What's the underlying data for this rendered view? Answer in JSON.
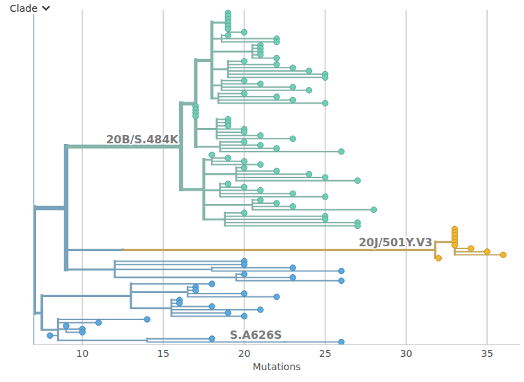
{
  "header": {
    "text": "Clade"
  },
  "chart_data": {
    "type": "tree",
    "x_label": "Mutations",
    "xlim": [
      7,
      37
    ],
    "xticks": [
      10,
      15,
      20,
      25,
      30,
      35
    ],
    "grid": true,
    "tick_labels": "x",
    "tree": {
      "x": 7,
      "color": "#5aa9df",
      "children": [
        {
          "x": 9,
          "children": [
            {
              "x": 16.1,
              "label": "20B/S.484K",
              "color": "#6fcfb6",
              "children": [
                {
                  "x": 17,
                  "children": [
                    {
                      "x": 18,
                      "children": [
                        {
                          "x": 19,
                          "children": [
                            {
                              "x": 19
                            },
                            {
                              "x": 19
                            },
                            {
                              "x": 19
                            },
                            {
                              "x": 19
                            },
                            {
                              "x": 19
                            },
                            {
                              "x": 19
                            },
                            {
                              "x": 20
                            }
                          ]
                        },
                        {
                          "x": 18.6,
                          "children": [
                            {
                              "x": 19
                            },
                            {
                              "x": 22
                            },
                            {
                              "x": 22
                            }
                          ]
                        },
                        {
                          "x": 20.5,
                          "children": [
                            {
                              "x": 21
                            },
                            {
                              "x": 21
                            },
                            {
                              "x": 21
                            },
                            {
                              "x": 21
                            },
                            {
                              "x": 22
                            }
                          ]
                        },
                        {
                          "x": 19,
                          "children": [
                            {
                              "x": 20
                            },
                            {
                              "x": 22
                            },
                            {
                              "x": 23
                            },
                            {
                              "x": 24
                            },
                            {
                              "x": 25
                            },
                            {
                              "x": 25
                            }
                          ]
                        },
                        {
                          "x": 18.6,
                          "children": [
                            {
                              "x": 20
                            },
                            {
                              "x": 21
                            },
                            {
                              "x": 23
                            },
                            {
                              "x": 24
                            }
                          ]
                        },
                        {
                          "x": 18.4,
                          "children": [
                            {
                              "x": 20
                            },
                            {
                              "x": 22
                            },
                            {
                              "x": 23
                            },
                            {
                              "x": 25
                            }
                          ]
                        }
                      ]
                    },
                    {
                      "x": 17
                    },
                    {
                      "x": 17
                    },
                    {
                      "x": 17
                    },
                    {
                      "x": 17
                    },
                    {
                      "x": 18.3,
                      "children": [
                        {
                          "x": 19
                        },
                        {
                          "x": 19
                        },
                        {
                          "x": 19
                        },
                        {
                          "x": 20
                        },
                        {
                          "x": 20
                        },
                        {
                          "x": 21
                        },
                        {
                          "x": 23
                        }
                      ]
                    },
                    {
                      "x": 18.5,
                      "children": [
                        {
                          "x": 20
                        },
                        {
                          "x": 21
                        },
                        {
                          "x": 22
                        },
                        {
                          "x": 26
                        }
                      ]
                    }
                  ]
                },
                {
                  "x": 17.5,
                  "children": [
                    {
                      "x": 18,
                      "children": [
                        {
                          "x": 18
                        },
                        {
                          "x": 19
                        },
                        {
                          "x": 20
                        },
                        {
                          "x": 21
                        }
                      ]
                    },
                    {
                      "x": 19.5,
                      "children": [
                        {
                          "x": 20
                        },
                        {
                          "x": 22
                        },
                        {
                          "x": 24
                        },
                        {
                          "x": 25
                        },
                        {
                          "x": 27
                        }
                      ]
                    },
                    {
                      "x": 18.5,
                      "children": [
                        {
                          "x": 19
                        },
                        {
                          "x": 20
                        },
                        {
                          "x": 21
                        },
                        {
                          "x": 23
                        },
                        {
                          "x": 25
                        }
                      ]
                    },
                    {
                      "x": 20.5,
                      "children": [
                        {
                          "x": 21
                        },
                        {
                          "x": 22
                        },
                        {
                          "x": 23
                        },
                        {
                          "x": 28
                        }
                      ]
                    },
                    {
                      "x": 18.8,
                      "children": [
                        {
                          "x": 20
                        },
                        {
                          "x": 25
                        },
                        {
                          "x": 25
                        },
                        {
                          "x": 27
                        },
                        {
                          "x": 27
                        }
                      ]
                    }
                  ]
                }
              ]
            },
            {
              "x": 12.5,
              "children": [
                {
                  "x": 31.8,
                  "label": "20J/501Y.V3",
                  "color": "#f2b630",
                  "children": [
                    {
                      "x": 33,
                      "children": [
                        {
                          "x": 33
                        },
                        {
                          "x": 33
                        },
                        {
                          "x": 33
                        },
                        {
                          "x": 33
                        },
                        {
                          "x": 33
                        },
                        {
                          "x": 33
                        },
                        {
                          "x": 34
                        },
                        {
                          "x": 35
                        },
                        {
                          "x": 36
                        }
                      ]
                    },
                    {
                      "x": 32
                    }
                  ]
                }
              ]
            },
            {
              "x": 12,
              "children": [
                {
                  "x": 20
                },
                {
                  "x": 20
                },
                {
                  "x": 18,
                  "children": [
                    {
                      "x": 23
                    },
                    {
                      "x": 26
                    }
                  ]
                },
                {
                  "x": 19.5,
                  "children": [
                    {
                      "x": 20
                    },
                    {
                      "x": 23
                    },
                    {
                      "x": 26
                    }
                  ]
                }
              ]
            }
          ]
        },
        {
          "x": 7.5,
          "children": [
            {
              "x": 13,
              "children": [
                {
                  "x": 18
                },
                {
                  "x": 16.5,
                  "children": [
                    {
                      "x": 17
                    },
                    {
                      "x": 17
                    },
                    {
                      "x": 20
                    },
                    {
                      "x": 22
                    }
                  ]
                },
                {
                  "x": 15.5,
                  "children": [
                    {
                      "x": 16
                    },
                    {
                      "x": 16
                    },
                    {
                      "x": 18
                    },
                    {
                      "x": 21
                    },
                    {
                      "x": 19
                    },
                    {
                      "x": 20
                    }
                  ]
                }
              ]
            },
            {
              "x": 8.5,
              "children": [
                {
                  "x": 14
                },
                {
                  "x": 11
                },
                {
                  "x": 9,
                  "children": [
                    {
                      "x": 9
                    },
                    {
                      "x": 10
                    },
                    {
                      "x": 10
                    }
                  ]
                },
                {
                  "x": 8
                },
                {
                  "x": 14,
                  "children": [
                    {
                      "x": 18
                    },
                    {
                      "x": 22.5,
                      "label": "S.A626S",
                      "children": [
                        {
                          "x": 26
                        }
                      ]
                    }
                  ]
                }
              ]
            }
          ]
        }
      ]
    }
  }
}
